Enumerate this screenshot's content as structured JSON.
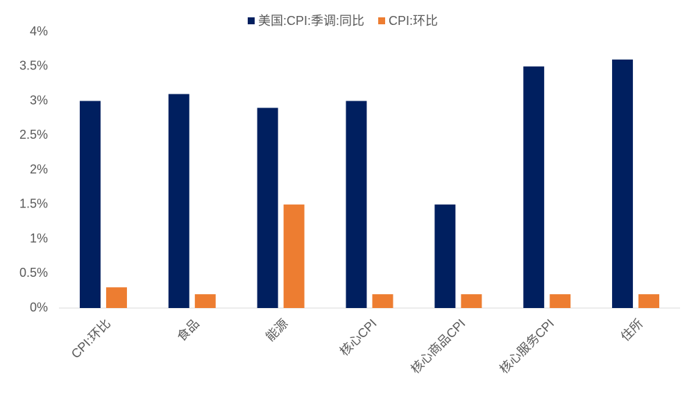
{
  "chart_data": {
    "type": "bar",
    "categories": [
      "CPI:环比",
      "食品",
      "能源",
      "核心CPI",
      "核心商品CPI",
      "核心服务CPI",
      "住所"
    ],
    "series": [
      {
        "name": "美国:CPI:季调:同比",
        "color": "#001f5f",
        "values": [
          3.0,
          3.1,
          2.9,
          3.0,
          1.5,
          3.5,
          3.6
        ]
      },
      {
        "name": "CPI:环比",
        "color": "#ed7d31",
        "values": [
          0.3,
          0.2,
          1.5,
          0.2,
          0.2,
          0.2,
          0.2
        ]
      }
    ],
    "ylim": [
      0,
      4
    ],
    "yticks": [
      {
        "value": 0,
        "label": "0%"
      },
      {
        "value": 0.5,
        "label": "0.5%"
      },
      {
        "value": 1,
        "label": "1%"
      },
      {
        "value": 1.5,
        "label": "1.5%"
      },
      {
        "value": 2,
        "label": "2%"
      },
      {
        "value": 2.5,
        "label": "2.5%"
      },
      {
        "value": 3,
        "label": "3%"
      },
      {
        "value": 3.5,
        "label": "3.5%"
      },
      {
        "value": 4,
        "label": "4%"
      }
    ],
    "grid": false,
    "legend": "top"
  }
}
